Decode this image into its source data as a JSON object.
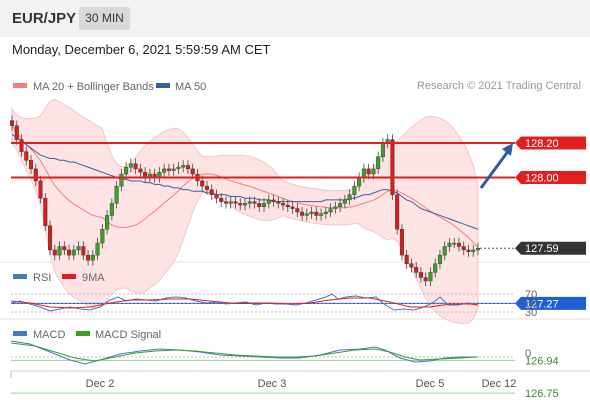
{
  "header": {
    "pair": "EUR/JPY",
    "timeframe": "30 MIN",
    "datetime": "Monday, December 6, 2021 5:59:59 AM CET"
  },
  "copyright": "Research © 2021 Trading Central",
  "colors": {
    "ma20": "#f08080",
    "ma50": "#3a5fa0",
    "resistance": "#e02020",
    "current": "#333333",
    "pivot": "#1f5fd6",
    "support": "#3a8f2a",
    "arrow": "#2e5b9a"
  },
  "chart_data": [
    {
      "type": "line",
      "panel": "price",
      "legend": [
        {
          "name": "MA 20 + Bollinger Bands",
          "color": "#f08080"
        },
        {
          "name": "MA 50",
          "color": "#3a5fa0"
        }
      ],
      "x_labels": [
        "Dec 2",
        "Dec 3",
        "Dec 5",
        "Dec 12"
      ],
      "ylim": [
        126.6,
        128.45
      ],
      "close": [
        128.3,
        128.22,
        128.15,
        128.1,
        128.05,
        127.98,
        127.88,
        127.72,
        127.58,
        127.55,
        127.6,
        127.58,
        127.55,
        127.58,
        127.6,
        127.55,
        127.52,
        127.55,
        127.62,
        127.7,
        127.78,
        127.85,
        127.95,
        128.02,
        128.06,
        128.08,
        128.05,
        128.03,
        128.0,
        128.02,
        128.0,
        128.03,
        128.05,
        128.04,
        128.05,
        128.06,
        128.07,
        128.05,
        128.02,
        127.98,
        127.95,
        127.93,
        127.9,
        127.88,
        127.86,
        127.85,
        127.86,
        127.85,
        127.84,
        127.85,
        127.86,
        127.85,
        127.83,
        127.85,
        127.87,
        127.86,
        127.85,
        127.84,
        127.83,
        127.82,
        127.8,
        127.78,
        127.79,
        127.8,
        127.78,
        127.79,
        127.8,
        127.82,
        127.83,
        127.85,
        127.87,
        127.9,
        127.95,
        128.0,
        128.05,
        128.02,
        128.05,
        128.12,
        128.2,
        128.22,
        127.9,
        127.7,
        127.55,
        127.5,
        127.48,
        127.45,
        127.42,
        127.4,
        127.45,
        127.5,
        127.55,
        127.6,
        127.62,
        127.62,
        127.6,
        127.58,
        127.57,
        127.58,
        127.59
      ],
      "ma50": [
        128.25,
        128.23,
        128.21,
        128.19,
        128.17,
        128.15,
        128.13,
        128.12,
        128.11,
        128.11,
        128.1,
        128.1,
        128.09,
        128.09,
        128.08,
        128.07,
        128.06,
        128.05,
        128.04,
        128.03,
        128.02,
        128.01,
        128.0,
        127.99,
        127.99,
        127.98,
        127.98,
        127.98,
        127.97,
        127.97,
        127.96,
        127.96,
        127.95,
        127.95,
        127.94,
        127.94,
        127.93,
        127.93,
        127.92,
        127.92,
        127.92,
        127.91,
        127.91,
        127.9,
        127.9,
        127.9,
        127.89,
        127.89,
        127.89,
        127.88,
        127.88,
        127.88,
        127.87,
        127.87,
        127.87,
        127.86,
        127.86,
        127.86,
        127.86,
        127.86,
        127.86,
        127.86,
        127.86,
        127.86,
        127.86,
        127.86,
        127.87,
        127.87,
        127.87,
        127.87,
        127.87,
        127.88,
        127.88,
        127.89,
        127.9,
        127.9,
        127.91,
        127.92,
        127.93,
        127.93,
        127.92,
        127.91,
        127.89,
        127.87,
        127.86,
        127.84,
        127.82,
        127.81,
        127.8,
        127.79,
        127.78,
        127.77,
        127.76,
        127.75,
        127.74,
        127.73,
        127.72,
        127.71,
        127.7
      ]
    },
    {
      "type": "line",
      "panel": "rsi",
      "legend": [
        {
          "name": "RSI",
          "color": "#4a76c8"
        },
        {
          "name": "9MA",
          "color": "#e02020"
        }
      ],
      "levels": [
        "70",
        "50",
        "30"
      ]
    },
    {
      "type": "line",
      "panel": "macd",
      "legend": [
        {
          "name": "MACD",
          "color": "#4a76c8"
        },
        {
          "name": "MACD Signal",
          "color": "#3aa028"
        }
      ],
      "levels": [
        "0"
      ]
    }
  ],
  "levels": [
    {
      "value": 128.2,
      "label": "128.20",
      "kind": "resistance"
    },
    {
      "value": 128.0,
      "label": "128.00",
      "kind": "resistance"
    },
    {
      "value": 127.59,
      "label": "127.59",
      "kind": "current"
    },
    {
      "value": 127.27,
      "label": "127.27",
      "kind": "pivot"
    },
    {
      "value": 126.94,
      "label": "126.94",
      "kind": "support"
    },
    {
      "value": 126.75,
      "label": "126.75",
      "kind": "support"
    }
  ]
}
